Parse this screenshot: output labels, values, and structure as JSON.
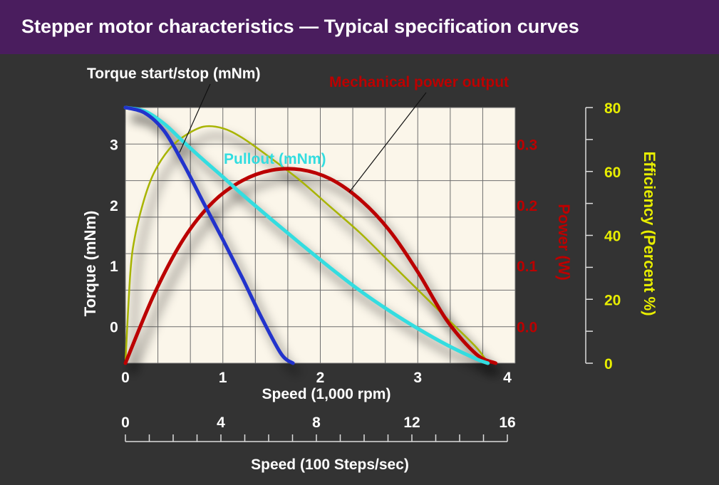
{
  "title": "Stepper motor characteristics — Typical specification curves",
  "colors": {
    "background": "#333333",
    "title_bar": "#4a1d5e",
    "plot_area": "#fbf6ea",
    "torque_start_stop": "#2233cc",
    "pullout": "#33dde0",
    "power": "#bb0000",
    "efficiency": "#a8b400",
    "efficiency_axis": "#e8ee00"
  },
  "chart_data": {
    "type": "line",
    "grid": true,
    "x_axis": {
      "label": "Speed  (1,000 rpm)",
      "range": [
        0,
        4
      ],
      "ticks": [
        0,
        1,
        2,
        3,
        4
      ],
      "tick_labels": [
        "0",
        "1",
        "2",
        "3",
        "4"
      ]
    },
    "x2_axis": {
      "label": "Speed  (100 Steps/sec)",
      "range": [
        0,
        16
      ],
      "ticks": [
        0,
        4,
        8,
        12,
        16
      ],
      "tick_labels": [
        "0",
        "4",
        "8",
        "12",
        "16"
      ]
    },
    "y_axis": {
      "label": "Torque  (mNm)",
      "range": [
        -0.6,
        3.6
      ],
      "ticks": [
        0,
        1,
        2,
        3
      ],
      "tick_labels": [
        "0",
        "1",
        "2",
        "3"
      ]
    },
    "y2_axis": {
      "label": "Power  (W)",
      "range": [
        -0.06,
        0.36
      ],
      "ticks": [
        0.0,
        0.1,
        0.2,
        0.3
      ],
      "tick_labels": [
        "0.0",
        "0.1",
        "0.2",
        "0.3"
      ]
    },
    "y3_axis": {
      "label": "Efficiency (Percent %)",
      "range": [
        0,
        80
      ],
      "ticks": [
        0,
        20,
        40,
        60,
        80
      ],
      "tick_labels": [
        "0",
        "20",
        "40",
        "60",
        "80"
      ]
    },
    "series": [
      {
        "name": "Torque start/stop (mNm)",
        "axis": "y",
        "color": "#2233cc",
        "x": [
          0,
          0.2,
          0.4,
          0.6,
          0.8,
          1.0,
          1.2,
          1.4,
          1.6,
          1.72
        ],
        "y": [
          3.6,
          3.51,
          3.21,
          2.66,
          2.04,
          1.43,
          0.8,
          0.14,
          -0.45,
          -0.6
        ]
      },
      {
        "name": "Pullout (mNm)",
        "axis": "y",
        "color": "#33dde0",
        "x": [
          0,
          0.2,
          0.4,
          0.6,
          0.8,
          1.0,
          1.2,
          1.5,
          1.8,
          2.1,
          2.4,
          2.7,
          3.0,
          3.3,
          3.6,
          3.72
        ],
        "y": [
          3.6,
          3.54,
          3.33,
          3.03,
          2.74,
          2.46,
          2.17,
          1.76,
          1.36,
          0.97,
          0.6,
          0.27,
          -0.03,
          -0.3,
          -0.53,
          -0.6
        ]
      },
      {
        "name": "Mechanical power output",
        "axis": "y2",
        "color": "#bb0000",
        "x": [
          0,
          0.3,
          0.6,
          0.9,
          1.2,
          1.5,
          1.8,
          2.1,
          2.4,
          2.7,
          3.0,
          3.3,
          3.6,
          3.8
        ],
        "y": [
          -0.06,
          0.055,
          0.145,
          0.205,
          0.24,
          0.257,
          0.258,
          0.243,
          0.21,
          0.16,
          0.09,
          0.01,
          -0.045,
          -0.06
        ]
      },
      {
        "name": "Efficiency",
        "axis": "y3",
        "color": "#a8b400",
        "x": [
          0,
          0.05,
          0.1,
          0.2,
          0.3,
          0.45,
          0.6,
          0.8,
          1.0,
          1.2,
          1.5,
          1.8,
          2.1,
          2.4,
          2.7,
          3.0,
          3.3,
          3.6,
          3.72
        ],
        "y": [
          0,
          28,
          40,
          52,
          60,
          67,
          71,
          74,
          73.5,
          70.5,
          64,
          57,
          49,
          41,
          32,
          23,
          14,
          5,
          0
        ]
      }
    ],
    "annotations": [
      {
        "text": "Torque start/stop (mNm)",
        "color": "#ffffff"
      },
      {
        "text": "Mechanical power output",
        "color": "#bb0000"
      },
      {
        "text": "Pullout (mNm)",
        "color": "#33dde0"
      }
    ]
  }
}
